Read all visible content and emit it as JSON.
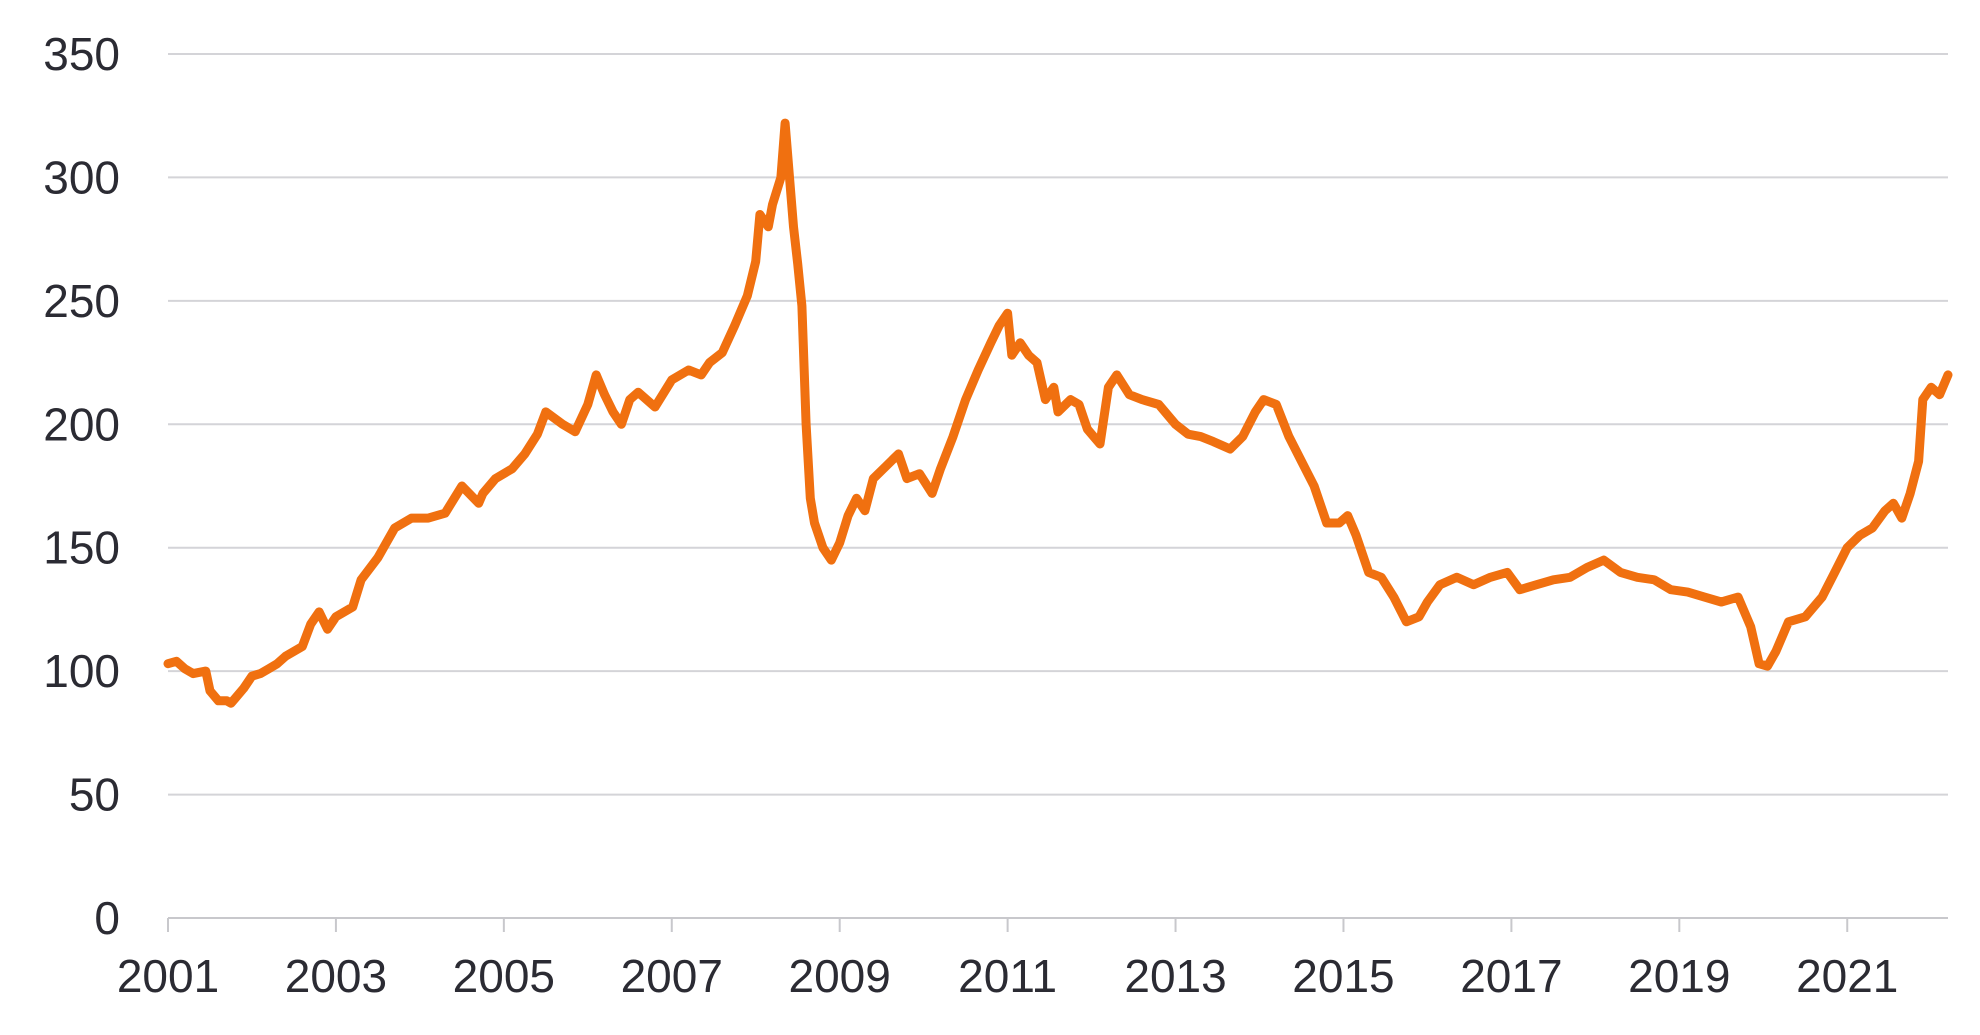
{
  "chart_data": {
    "type": "line",
    "title": "",
    "xlabel": "",
    "ylabel": "",
    "xlim": [
      2001,
      2022.2
    ],
    "ylim": [
      0,
      350
    ],
    "x_ticks": [
      2001,
      2003,
      2005,
      2007,
      2009,
      2011,
      2013,
      2015,
      2017,
      2019,
      2021
    ],
    "x_tick_labels": [
      "2001",
      "2003",
      "2005",
      "2007",
      "2009",
      "2011",
      "2013",
      "2015",
      "2017",
      "2019",
      "2021"
    ],
    "y_ticks": [
      0,
      50,
      100,
      150,
      200,
      250,
      300,
      350
    ],
    "y_tick_labels": [
      "0",
      "50",
      "100",
      "150",
      "200",
      "250",
      "300",
      "350"
    ],
    "grid": "horizontal",
    "legend": "none",
    "colors": {
      "series": "#f07010",
      "grid": "#d4d4d8",
      "text": "#2b2b33"
    },
    "series": [
      {
        "x": [
          2001.0,
          2001.1,
          2001.2,
          2001.3,
          2001.45,
          2001.5,
          2001.6,
          2001.7,
          2001.75,
          2001.8,
          2001.9,
          2002.0,
          2002.1,
          2002.2,
          2002.3,
          2002.4,
          2002.5,
          2002.6,
          2002.7,
          2002.8,
          2002.9,
          2003.0,
          2003.1,
          2003.2,
          2003.3,
          2003.5,
          2003.7,
          2003.9,
          2004.1,
          2004.3,
          2004.5,
          2004.7,
          2004.75,
          2004.9,
          2005.1,
          2005.25,
          2005.4,
          2005.5,
          2005.7,
          2005.85,
          2006.0,
          2006.1,
          2006.2,
          2006.3,
          2006.4,
          2006.5,
          2006.6,
          2006.8,
          2007.0,
          2007.2,
          2007.35,
          2007.45,
          2007.6,
          2007.75,
          2007.9,
          2008.0,
          2008.05,
          2008.15,
          2008.2,
          2008.3,
          2008.35,
          2008.45,
          2008.5,
          2008.55,
          2008.6,
          2008.65,
          2008.7,
          2008.8,
          2008.9,
          2009.0,
          2009.1,
          2009.2,
          2009.3,
          2009.4,
          2009.55,
          2009.7,
          2009.8,
          2009.95,
          2010.1,
          2010.2,
          2010.35,
          2010.5,
          2010.65,
          2010.8,
          2010.9,
          2011.0,
          2011.05,
          2011.15,
          2011.25,
          2011.35,
          2011.45,
          2011.55,
          2011.6,
          2011.75,
          2011.85,
          2011.95,
          2012.1,
          2012.2,
          2012.3,
          2012.45,
          2012.6,
          2012.8,
          2013.0,
          2013.15,
          2013.3,
          2013.45,
          2013.65,
          2013.8,
          2013.95,
          2014.05,
          2014.2,
          2014.35,
          2014.5,
          2014.65,
          2014.8,
          2014.95,
          2015.05,
          2015.15,
          2015.3,
          2015.45,
          2015.6,
          2015.75,
          2015.9,
          2016.0,
          2016.15,
          2016.35,
          2016.55,
          2016.75,
          2016.95,
          2017.1,
          2017.3,
          2017.5,
          2017.7,
          2017.9,
          2018.1,
          2018.3,
          2018.5,
          2018.7,
          2018.9,
          2019.1,
          2019.3,
          2019.5,
          2019.7,
          2019.85,
          2019.95,
          2020.05,
          2020.15,
          2020.3,
          2020.5,
          2020.7,
          2020.85,
          2021.0,
          2021.15,
          2021.3,
          2021.45,
          2021.55,
          2021.65,
          2021.75,
          2021.85,
          2021.9,
          2022.0,
          2022.1,
          2022.2
        ],
        "values": [
          103,
          104,
          101,
          99,
          100,
          92,
          88,
          88,
          87,
          89,
          93,
          98,
          99,
          101,
          103,
          106,
          108,
          110,
          119,
          124,
          117,
          122,
          124,
          126,
          137,
          146,
          158,
          162,
          162,
          164,
          175,
          168,
          172,
          178,
          182,
          188,
          196,
          205,
          200,
          197,
          208,
          220,
          212,
          205,
          200,
          210,
          213,
          207,
          218,
          222,
          220,
          225,
          229,
          240,
          252,
          266,
          285,
          280,
          289,
          300,
          322,
          280,
          265,
          248,
          200,
          170,
          160,
          150,
          145,
          152,
          163,
          170,
          165,
          178,
          183,
          188,
          178,
          180,
          172,
          182,
          195,
          210,
          222,
          233,
          240,
          245,
          228,
          233,
          228,
          225,
          210,
          215,
          205,
          210,
          208,
          198,
          192,
          215,
          220,
          212,
          210,
          208,
          200,
          196,
          195,
          193,
          190,
          195,
          205,
          210,
          208,
          195,
          185,
          175,
          160,
          160,
          163,
          155,
          140,
          138,
          130,
          120,
          122,
          128,
          135,
          138,
          135,
          138,
          140,
          133,
          135,
          137,
          138,
          142,
          145,
          140,
          138,
          137,
          133,
          132,
          130,
          128,
          130,
          118,
          103,
          102,
          108,
          120,
          122,
          130,
          140,
          150,
          155,
          158,
          165,
          168,
          162,
          172,
          185,
          210,
          215,
          212,
          220
        ]
      }
    ]
  }
}
